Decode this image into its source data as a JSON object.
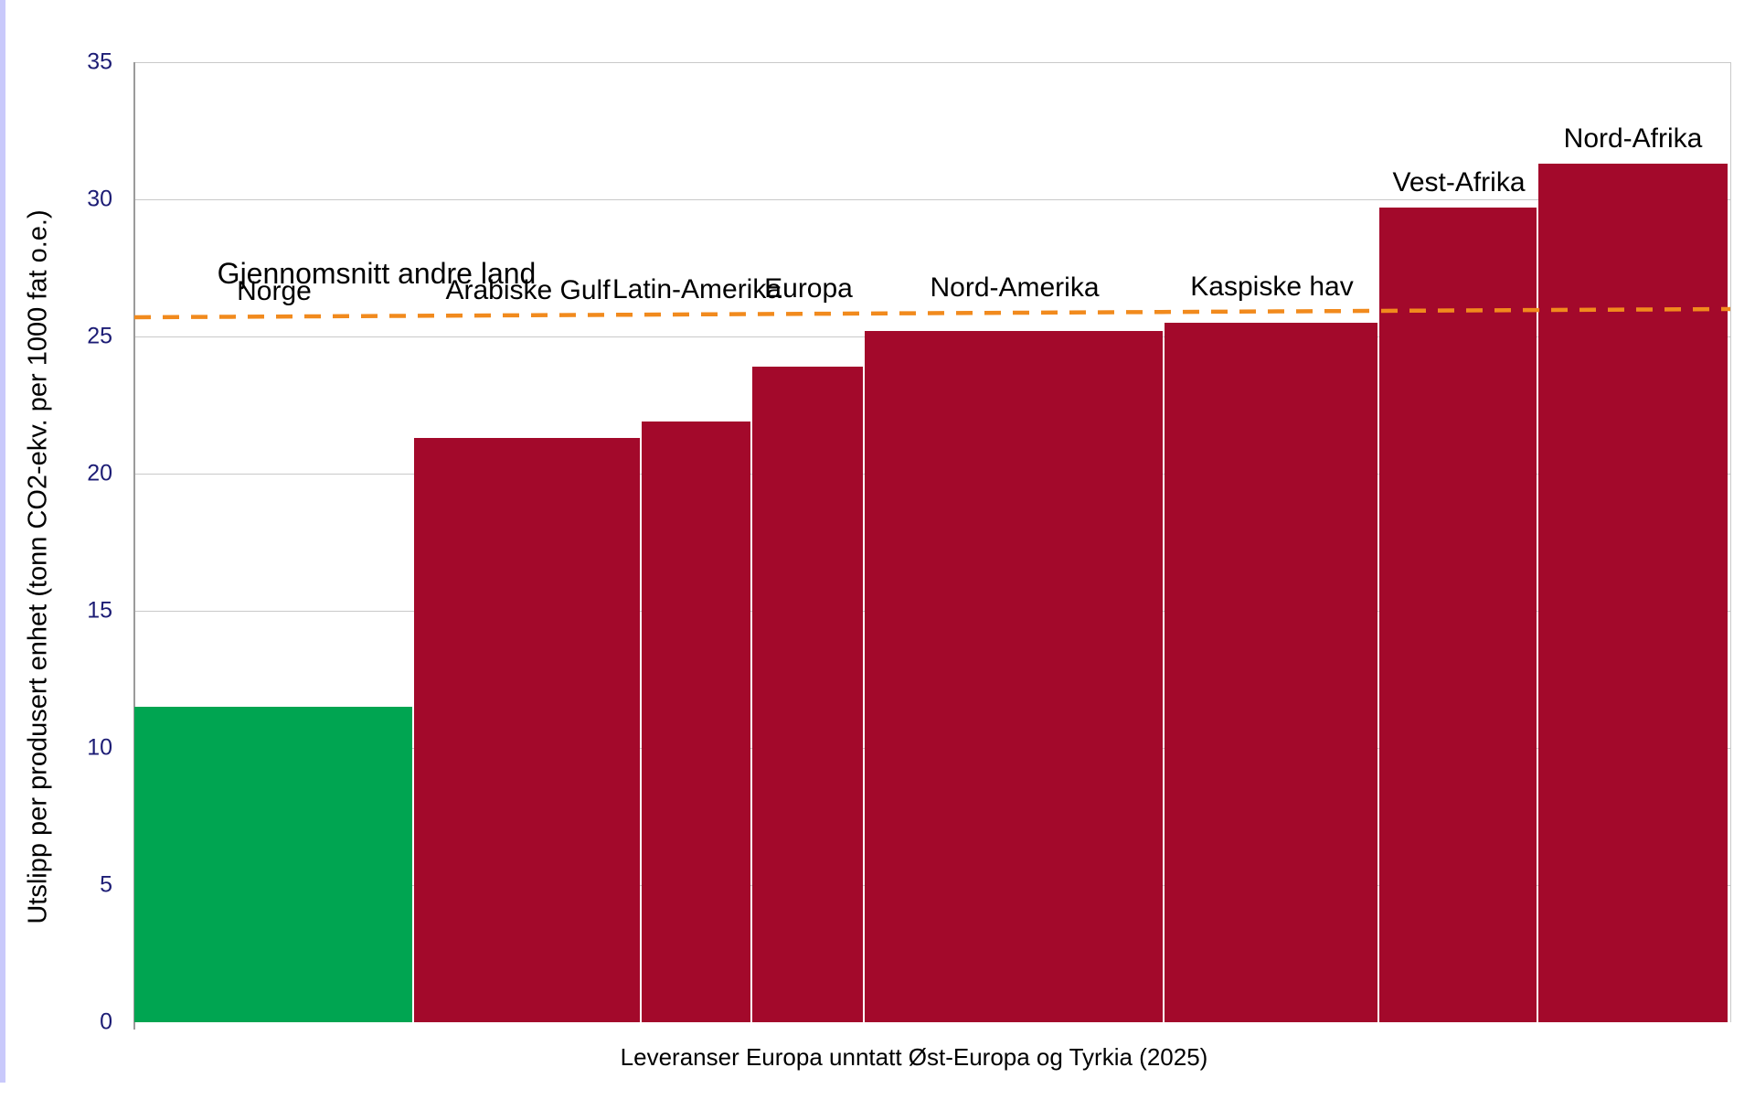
{
  "window": {
    "left_edge_strip_color": "#C9C9FB"
  },
  "chart_data": {
    "type": "bar",
    "variant": "variable-width-bars",
    "title": "",
    "xlabel": "Leveranser Europa unntatt Øst-Europa og Tyrkia (2025)",
    "ylabel": "Utslipp per produsert enhet (tonn CO2-ekv. per 1000 fat o.e.)",
    "ylim": [
      0,
      35
    ],
    "yticks": [
      0,
      5,
      10,
      15,
      20,
      25,
      30,
      35
    ],
    "grid": "horizontal",
    "legend": "none",
    "categories": [
      "Norge",
      "Arabiske Gulf",
      "Latin-Amerika",
      "Europa",
      "Nord-Amerika",
      "Kaspiske hav",
      "Vest-Afrika",
      "Nord-Afrika"
    ],
    "values": [
      11.5,
      21.3,
      21.9,
      23.9,
      25.2,
      25.5,
      29.7,
      31.3
    ],
    "width_weights": [
      306,
      249,
      121,
      123,
      328,
      235,
      174,
      207
    ],
    "bar_colors": [
      "#00A551",
      "#A3092B",
      "#A3092B",
      "#A3092B",
      "#A3092B",
      "#A3092B",
      "#A3092B",
      "#A3092B"
    ],
    "reference_line": {
      "label": "Gjennomsnitt andre land",
      "start_value": 25.7,
      "end_value": 26.0,
      "style": "dashed",
      "color": "#F18A1D"
    }
  },
  "colors": {
    "tick_label": "#1C1C75",
    "gridline": "#C9C9C9",
    "axis_line": "#9B9B9B",
    "bar_gap": "#FFFFFF",
    "background": "#FFFFFF"
  }
}
